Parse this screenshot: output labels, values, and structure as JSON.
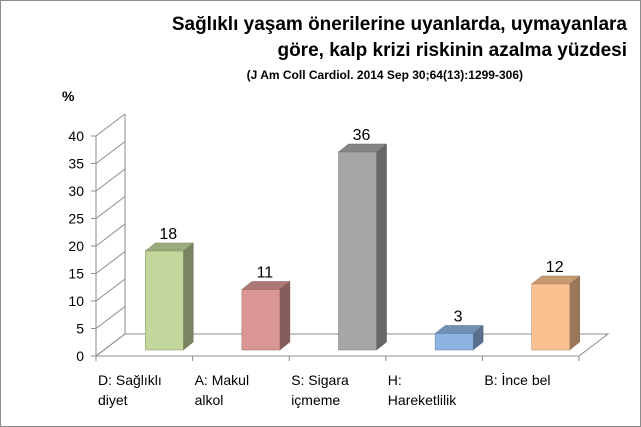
{
  "chart_data": {
    "type": "bar",
    "title": "Sağlıklı yaşam önerilerine uyanlarda, uymayanlara göre, kalp krizi riskinin azalma yüzdesi",
    "title_lines": [
      "Sağlıklı yaşam önerilerine uyanlarda, uymayanlara",
      "göre, kalp krizi riskinin azalma yüzdesi"
    ],
    "subtitle": "(J Am Coll Cardiol. 2014 Sep 30;64(13):1299-306)",
    "ylabel": "%",
    "xlabel": "",
    "ylim": [
      0,
      40
    ],
    "yticks": [
      0,
      5,
      10,
      15,
      20,
      25,
      30,
      35,
      40
    ],
    "grid": false,
    "style": "3d-column",
    "categories": [
      [
        "D: Sağlıklı",
        "diyet"
      ],
      [
        "A: Makul",
        "alkol"
      ],
      [
        "S: Sigara",
        "içmeme"
      ],
      [
        "H:",
        "Hareketlilik"
      ],
      [
        "B: İnce bel"
      ]
    ],
    "values": [
      18,
      11,
      36,
      3,
      12
    ],
    "data_labels": [
      "18",
      "11",
      "36",
      "3",
      "12"
    ],
    "colors": [
      "#c3d69b",
      "#d99694",
      "#a6a6a6",
      "#8eb4e3",
      "#fac090"
    ]
  }
}
